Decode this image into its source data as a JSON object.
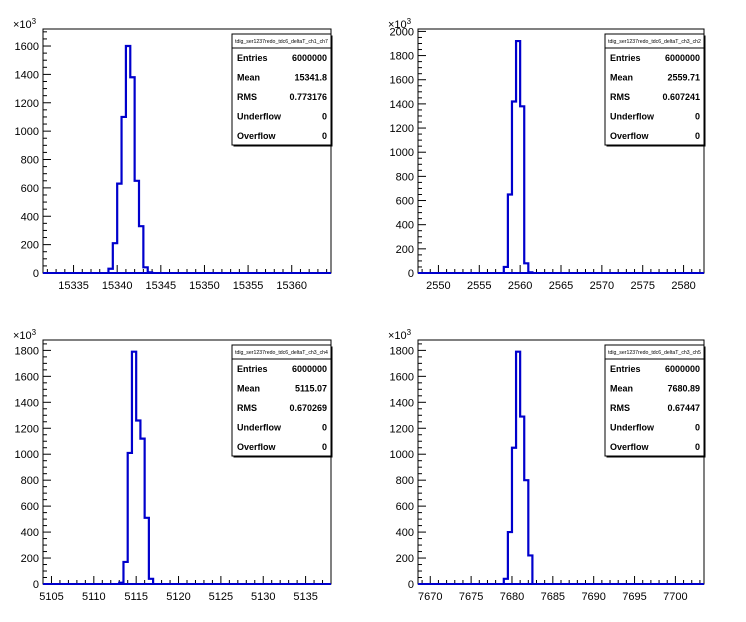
{
  "chart_data": [
    {
      "type": "histogram",
      "xlim": [
        15331.5,
        15364.5
      ],
      "xticks": [
        15335,
        15340,
        15345,
        15350,
        15355,
        15360
      ],
      "ylim": [
        0,
        1720
      ],
      "yticks": [
        0,
        200,
        400,
        600,
        800,
        1000,
        1200,
        1400,
        1600
      ],
      "y_multiplier": "×10³",
      "bins": {
        "edges": [
          15339,
          15339.5,
          15340,
          15340.5,
          15341,
          15341.5,
          15342,
          15342.5,
          15343,
          15343.5,
          15344
        ],
        "values": [
          30,
          210,
          630,
          1100,
          1600,
          1380,
          650,
          330,
          40,
          5
        ]
      },
      "stats": {
        "title": "tdig_ser1237redo_tdc6_deltaT_ch1_ch7",
        "rows": [
          {
            "label": "Entries",
            "value": "6000000"
          },
          {
            "label": "Mean",
            "value": "15341.8"
          },
          {
            "label": "RMS",
            "value": "0.773176"
          },
          {
            "label": "Underflow",
            "value": "0"
          },
          {
            "label": "Overflow",
            "value": "0"
          }
        ]
      }
    },
    {
      "type": "histogram",
      "xlim": [
        2547.5,
        2582.5
      ],
      "xticks": [
        2550,
        2555,
        2560,
        2565,
        2570,
        2575,
        2580
      ],
      "ylim": [
        0,
        2020
      ],
      "yticks": [
        0,
        200,
        400,
        600,
        800,
        1000,
        1200,
        1400,
        1600,
        1800,
        2000
      ],
      "y_multiplier": "×10³",
      "bins": {
        "edges": [
          2558,
          2558.5,
          2559,
          2559.5,
          2560,
          2560.5,
          2561,
          2561.5
        ],
        "values": [
          50,
          650,
          1420,
          1920,
          1380,
          80,
          5
        ]
      },
      "stats": {
        "title": "tdig_ser1237redo_tdc6_deltaT_ch3_ch2",
        "rows": [
          {
            "label": "Entries",
            "value": "6000000"
          },
          {
            "label": "Mean",
            "value": "2559.71"
          },
          {
            "label": "RMS",
            "value": "0.607241"
          },
          {
            "label": "Underflow",
            "value": "0"
          },
          {
            "label": "Overflow",
            "value": "0"
          }
        ]
      }
    },
    {
      "type": "histogram",
      "xlim": [
        5104,
        5138
      ],
      "xticks": [
        5105,
        5110,
        5115,
        5120,
        5125,
        5130,
        5135
      ],
      "ylim": [
        0,
        1880
      ],
      "yticks": [
        0,
        200,
        400,
        600,
        800,
        1000,
        1200,
        1400,
        1600,
        1800
      ],
      "y_multiplier": "×10³",
      "bins": {
        "edges": [
          5113,
          5113.5,
          5114,
          5114.5,
          5115,
          5115.5,
          5116,
          5116.5,
          5117
        ],
        "values": [
          10,
          170,
          1010,
          1790,
          1260,
          1120,
          510,
          40
        ]
      },
      "stats": {
        "title": "tdig_ser1237redo_tdc6_deltaT_ch3_ch4",
        "rows": [
          {
            "label": "Entries",
            "value": "6000000"
          },
          {
            "label": "Mean",
            "value": "5115.07"
          },
          {
            "label": "RMS",
            "value": "0.670269"
          },
          {
            "label": "Underflow",
            "value": "0"
          },
          {
            "label": "Overflow",
            "value": "0"
          }
        ]
      }
    },
    {
      "type": "histogram",
      "xlim": [
        7668.5,
        7703.5
      ],
      "xticks": [
        7670,
        7675,
        7680,
        7685,
        7690,
        7695,
        7700
      ],
      "ylim": [
        0,
        1880
      ],
      "yticks": [
        0,
        200,
        400,
        600,
        800,
        1000,
        1200,
        1400,
        1600,
        1800
      ],
      "y_multiplier": "×10³",
      "bins": {
        "edges": [
          7679,
          7679.5,
          7680,
          7680.5,
          7681,
          7681.5,
          7682,
          7682.5
        ],
        "values": [
          40,
          400,
          1050,
          1790,
          1290,
          800,
          220
        ]
      },
      "stats": {
        "title": "tdig_ser1237redo_tdc6_deltaT_ch3_ch5",
        "rows": [
          {
            "label": "Entries",
            "value": "6000000"
          },
          {
            "label": "Mean",
            "value": "7680.89"
          },
          {
            "label": "RMS",
            "value": "0.67447"
          },
          {
            "label": "Underflow",
            "value": "0"
          },
          {
            "label": "Overflow",
            "value": "0"
          }
        ]
      }
    }
  ],
  "style": {
    "histogram_line_color": "#0000cc",
    "axis_color": "#000000",
    "background": "#ffffff"
  }
}
